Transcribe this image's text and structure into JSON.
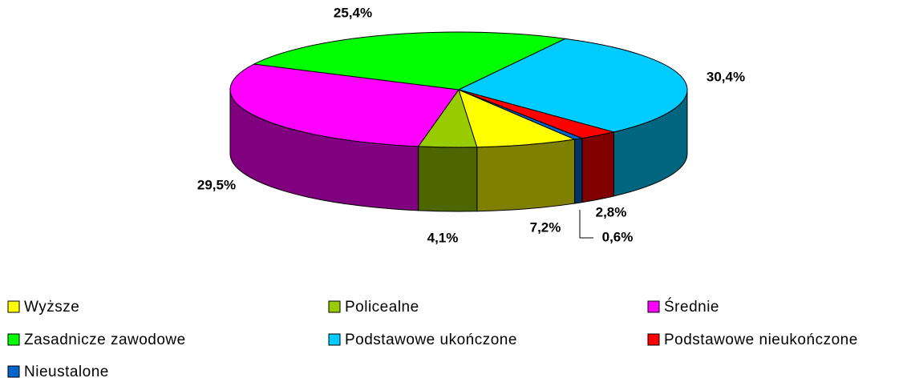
{
  "chart_data": {
    "type": "pie3d",
    "categories": [
      "Wyższe",
      "Policealne",
      "Średnie",
      "Zasadnicze zawodowe",
      "Podstawowe ukończone",
      "Podstawowe nieukończone",
      "Nieustalone"
    ],
    "values": [
      7.2,
      4.1,
      29.5,
      25.4,
      30.4,
      2.8,
      0.6
    ],
    "value_labels": [
      "7,2%",
      "4,1%",
      "29,5%",
      "25,4%",
      "30,4%",
      "2,8%",
      "0,6%"
    ],
    "colors": [
      "#ffff00",
      "#99cc00",
      "#ff00ff",
      "#00ff00",
      "#00ccff",
      "#ff0000",
      "#0066cc"
    ],
    "legend": "bottom"
  }
}
